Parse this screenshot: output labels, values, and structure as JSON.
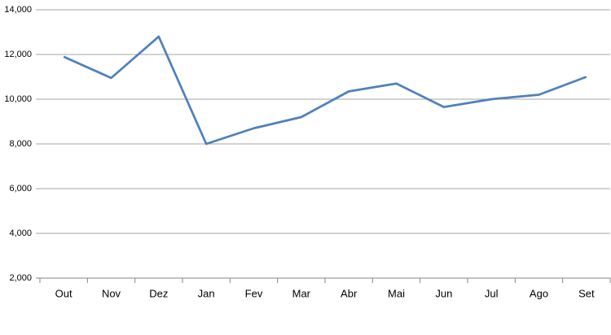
{
  "chart_data": {
    "type": "line",
    "categories": [
      "Out",
      "Nov",
      "Dez",
      "Jan",
      "Fev",
      "Mar",
      "Abr",
      "Mai",
      "Jun",
      "Jul",
      "Ago",
      "Set"
    ],
    "values": [
      11900,
      10950,
      12800,
      8000,
      8700,
      9200,
      10350,
      10700,
      9650,
      10000,
      10200,
      11000
    ],
    "color": "#4f81bd",
    "ylim": [
      2000,
      14000
    ],
    "yticks": [
      {
        "value": 2000,
        "label": "2,000"
      },
      {
        "value": 4000,
        "label": "4,000"
      },
      {
        "value": 6000,
        "label": "6,000"
      },
      {
        "value": 8000,
        "label": "8,000"
      },
      {
        "value": 10000,
        "label": "10,000"
      },
      {
        "value": 12000,
        "label": "12,000"
      },
      {
        "value": 14000,
        "label": "14,000"
      }
    ],
    "grid": true
  }
}
